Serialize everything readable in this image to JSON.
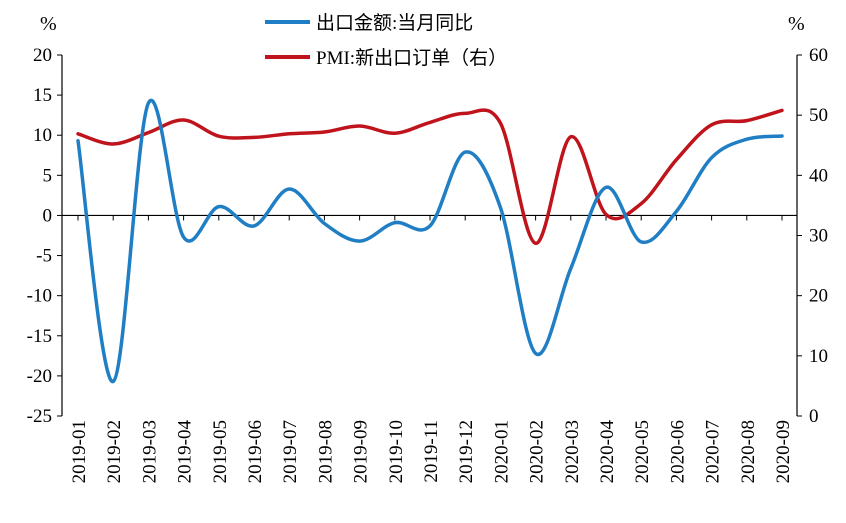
{
  "chart_data": {
    "type": "line",
    "title": "",
    "left_unit": "%",
    "right_unit": "%",
    "x": [
      "2019-01",
      "2019-02",
      "2019-03",
      "2019-04",
      "2019-05",
      "2019-06",
      "2019-07",
      "2019-08",
      "2019-09",
      "2019-10",
      "2019-11",
      "2019-12",
      "2020-01",
      "2020-02",
      "2020-03",
      "2020-04",
      "2020-05",
      "2020-06",
      "2020-07",
      "2020-08",
      "2020-09"
    ],
    "left_axis": {
      "ylim": [
        -25,
        20
      ],
      "ticks": [
        "20",
        "15",
        "10",
        "5",
        "0",
        "-5",
        "-10",
        "-15",
        "-20",
        "-25"
      ],
      "tick_values": [
        20,
        15,
        10,
        5,
        0,
        -5,
        -10,
        -15,
        -20,
        -25
      ]
    },
    "right_axis": {
      "ylim": [
        0,
        60
      ],
      "ticks": [
        "60",
        "50",
        "40",
        "30",
        "20",
        "10",
        "0"
      ],
      "tick_values": [
        60,
        50,
        40,
        30,
        20,
        10,
        0
      ]
    },
    "series": [
      {
        "name": "出口金额:当月同比",
        "axis": "left",
        "color": "#1f7ec4",
        "values": [
          9.3,
          -20.7,
          14.0,
          -2.7,
          1.1,
          -1.3,
          3.3,
          -1.0,
          -3.2,
          -0.9,
          -1.3,
          7.9,
          1.0,
          -17.2,
          -6.6,
          3.5,
          -3.3,
          0.5,
          7.2,
          9.5,
          9.9
        ]
      },
      {
        "name": "PMI:新出口订单（右）",
        "axis": "right",
        "color": "#c0141c",
        "values": [
          46.9,
          45.2,
          47.1,
          49.2,
          46.5,
          46.3,
          46.9,
          47.2,
          48.2,
          47.0,
          48.8,
          50.3,
          48.7,
          28.7,
          46.4,
          33.5,
          35.3,
          42.6,
          48.4,
          49.1,
          50.8
        ]
      }
    ],
    "legend_position": "top-center",
    "grid": false
  }
}
